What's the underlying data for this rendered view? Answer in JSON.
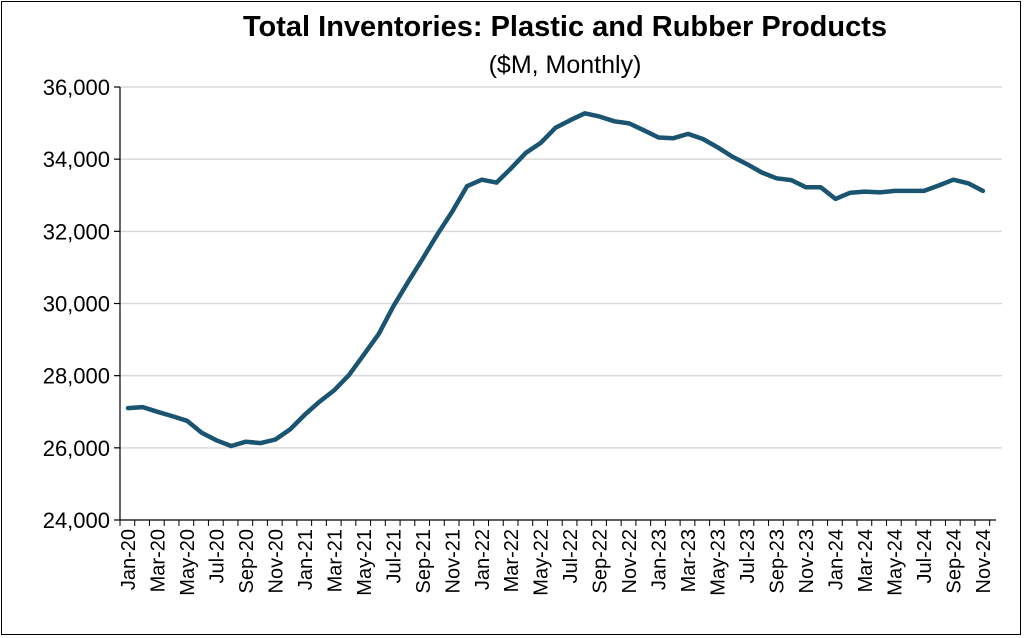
{
  "chart_data": {
    "type": "line",
    "title": "Total Inventories: Plastic and Rubber Products",
    "subtitle": "($M, Monthly)",
    "ylim": [
      24000,
      36000
    ],
    "y_ticks": [
      24000,
      26000,
      28000,
      30000,
      32000,
      34000,
      36000
    ],
    "y_tick_labels": [
      "24,000",
      "26,000",
      "28,000",
      "30,000",
      "32,000",
      "34,000",
      "36,000"
    ],
    "x_tick_labels": [
      "Jan-20",
      "Mar-20",
      "May-20",
      "Jul-20",
      "Sep-20",
      "Nov-20",
      "Jan-21",
      "Mar-21",
      "May-21",
      "Jul-21",
      "Sep-21",
      "Nov-21",
      "Jan-22",
      "Mar-22",
      "May-22",
      "Jul-22",
      "Sep-22",
      "Nov-22",
      "Jan-23",
      "Mar-23",
      "May-23",
      "Jul-23",
      "Sep-23",
      "Nov-23",
      "Jan-24",
      "Mar-24",
      "May-24",
      "Jul-24",
      "Sep-24",
      "Nov-24"
    ],
    "grid": true,
    "line_color": "#1a5470",
    "series": [
      {
        "values": [
          27100,
          27130,
          27000,
          26880,
          26750,
          26420,
          26210,
          26050,
          26170,
          26130,
          26230,
          26510,
          26920,
          27280,
          27600,
          28020,
          28580,
          29150,
          29920,
          30600,
          31250,
          31920,
          32550,
          33250,
          33430,
          33350,
          33750,
          34180,
          34450,
          34870,
          35080,
          35270,
          35180,
          35050,
          34990,
          34800,
          34600,
          34580,
          34700,
          34560,
          34330,
          34070,
          33860,
          33630,
          33470,
          33420,
          33220,
          33220,
          32900,
          33070,
          33100,
          33080,
          33120,
          33120,
          33120,
          33270,
          33430,
          33330,
          33120
        ]
      }
    ]
  }
}
